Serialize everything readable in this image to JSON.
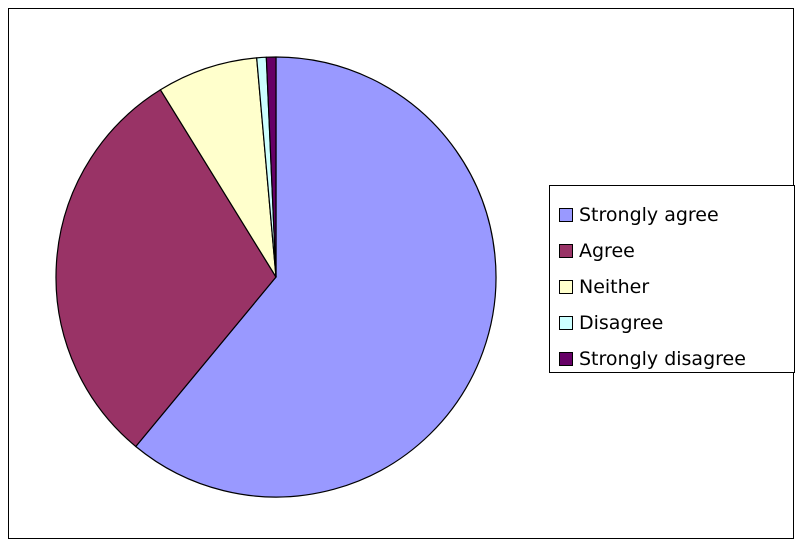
{
  "chart_data": {
    "type": "pie",
    "title": "",
    "legend": "right",
    "start_angle_deg": 0,
    "direction": "clockwise",
    "slices": [
      {
        "label": "Strongly agree",
        "value": 61.0,
        "color": "#9999ff"
      },
      {
        "label": "Agree",
        "value": 30.2,
        "color": "#993366"
      },
      {
        "label": "Neither",
        "value": 7.4,
        "color": "#ffffcc"
      },
      {
        "label": "Disagree",
        "value": 0.7,
        "color": "#ccffff"
      },
      {
        "label": "Strongly disagree",
        "value": 0.7,
        "color": "#660066"
      }
    ]
  }
}
